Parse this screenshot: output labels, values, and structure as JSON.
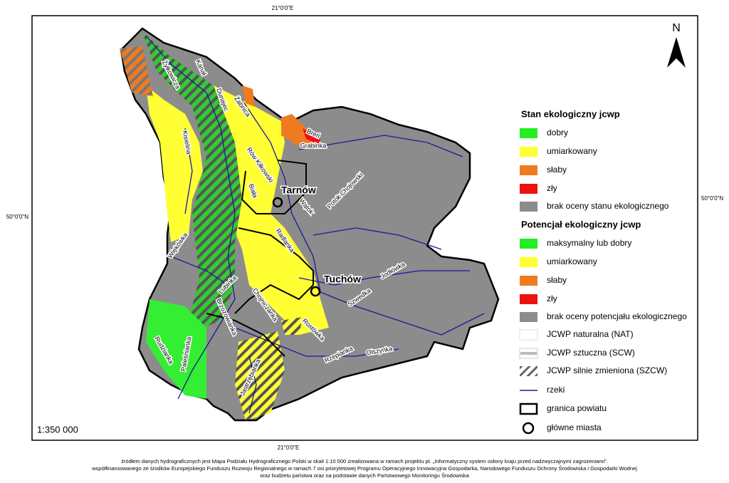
{
  "coordinates": {
    "top": "21°0'0\"E",
    "bottom": "21°0'0\"E",
    "left": "50°0'0\"N",
    "right": "50°0'0\"N"
  },
  "north": "N",
  "scale": "1:350 000",
  "legend": {
    "status_title": "Stan ekologiczny jcwp",
    "status_items": [
      "dobry",
      "umiarkowany",
      "słaby",
      "zły",
      "brak oceny stanu ekologicznego"
    ],
    "potential_title": "Potencjał ekologiczny jcwp",
    "potential_items": [
      "maksymalny lub dobry",
      "umiarkowany",
      "słaby",
      "zły",
      "brak oceny potencjału ekologicznego"
    ],
    "other_items": [
      "JCWP naturalna (NAT)",
      "JCWP sztuczna (SCW)",
      "JCWP silnie zmieniona (SZCW)",
      "rzeki",
      "granica powiatu",
      "główne miasta"
    ]
  },
  "towns": [
    "Tarnów",
    "Tuchów"
  ],
  "rivers": [
    "Kanał",
    "Żyłkowicza",
    "Dunajec",
    "Żabnica",
    "Breń",
    "Grabinka",
    "Kisielina",
    "Rów Kiłkowski",
    "Biała",
    "Wątok",
    "Potok Chojowski",
    "Radlanka",
    "Więkówka",
    "Lubinka",
    "Chojniczanka",
    "Brzozowianka",
    "Szwedka",
    "Jodłówka",
    "Rostówka",
    "Olszynka",
    "Rzepianka",
    "Rudzianka",
    "Paleśnianka",
    "Jastrzębianka"
  ],
  "footer": [
    "źródłem danych hydrograficznych jest Mapa Podziału Hydrograficznego Polski w skali 1:10 000 zrealizowana w ramach projektu pt. „Informatyczny system osłony kraju przed nadzwyczajnymi zagrożeniami”.",
    "współfinansowanego ze środków Europejskiego Funduszu Rozwoju Regionalnego w ramach 7 osi priorytetowej Programu Operacyjnego Innowacyjna Gospodarka, Narodowego Funduszu Ochrony Środowiska i Gospodarki Wodnej",
    "oraz budżetu państwa oraz na podstawie danych Państwowego Monitoringu Środowiska"
  ]
}
